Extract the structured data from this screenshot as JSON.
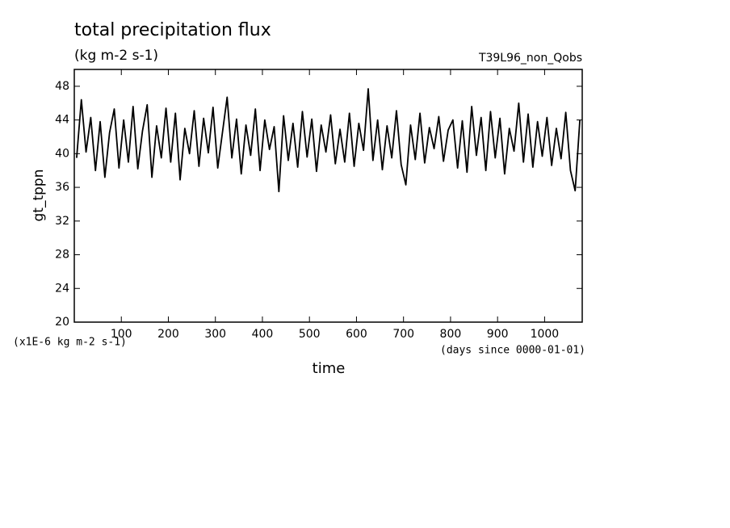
{
  "chart_data": {
    "type": "line",
    "title": "total precipitation flux",
    "subtitle": "(kg m-2 s-1)",
    "annotation": "T39L96_non_Qobs",
    "y_label": "gt_tppn",
    "x_label": "time",
    "y_units": "(x1E-6 kg m-2 s-1)",
    "x_units": "(days since 0000-01-01)",
    "color": "#000000",
    "xlim": [
      0,
      1080
    ],
    "ylim": [
      20,
      50
    ],
    "xticks": [
      100,
      200,
      300,
      400,
      500,
      600,
      700,
      800,
      900,
      1000
    ],
    "yticks": [
      20,
      24,
      28,
      32,
      36,
      40,
      44,
      48
    ],
    "x": [
      5,
      15,
      25,
      35,
      45,
      55,
      65,
      75,
      85,
      95,
      105,
      115,
      125,
      135,
      145,
      155,
      165,
      175,
      185,
      195,
      205,
      215,
      225,
      235,
      245,
      255,
      265,
      275,
      285,
      295,
      305,
      315,
      325,
      335,
      345,
      355,
      365,
      375,
      385,
      395,
      405,
      415,
      425,
      435,
      445,
      455,
      465,
      475,
      485,
      495,
      505,
      515,
      525,
      535,
      545,
      555,
      565,
      575,
      585,
      595,
      605,
      615,
      625,
      635,
      645,
      655,
      665,
      675,
      685,
      695,
      705,
      715,
      725,
      735,
      745,
      755,
      765,
      775,
      785,
      795,
      805,
      815,
      825,
      835,
      845,
      855,
      865,
      875,
      885,
      895,
      905,
      915,
      925,
      935,
      945,
      955,
      965,
      975,
      985,
      995,
      1005,
      1015,
      1025,
      1035,
      1045,
      1055,
      1065,
      1075
    ],
    "values": [
      39.5,
      46.4,
      40.2,
      44.3,
      38.0,
      43.8,
      37.2,
      42.5,
      45.3,
      38.3,
      44.0,
      39.0,
      45.6,
      38.2,
      42.7,
      45.8,
      37.2,
      43.3,
      39.5,
      45.4,
      39.0,
      44.8,
      36.9,
      43.0,
      40.0,
      45.1,
      38.5,
      44.2,
      40.1,
      45.5,
      38.3,
      42.5,
      46.7,
      39.5,
      44.1,
      37.6,
      43.4,
      39.8,
      45.3,
      38.0,
      44.0,
      40.5,
      43.2,
      35.5,
      44.5,
      39.2,
      43.6,
      38.4,
      45.0,
      39.6,
      44.1,
      37.9,
      43.4,
      40.2,
      44.6,
      38.8,
      42.9,
      39.0,
      44.8,
      38.5,
      43.6,
      40.4,
      47.7,
      39.2,
      44.0,
      38.1,
      43.3,
      39.5,
      45.1,
      38.7,
      36.3,
      43.4,
      39.3,
      44.8,
      38.9,
      43.1,
      40.6,
      44.4,
      39.1,
      42.8,
      44.0,
      38.3,
      43.9,
      37.8,
      45.6,
      39.8,
      44.3,
      38.0,
      45.0,
      39.5,
      44.2,
      37.6,
      43.0,
      40.3,
      46.0,
      39.0,
      44.7,
      38.4,
      43.8,
      39.7,
      44.3,
      38.6,
      43.0,
      39.4,
      44.9,
      38.0,
      35.6,
      44.0
    ]
  }
}
